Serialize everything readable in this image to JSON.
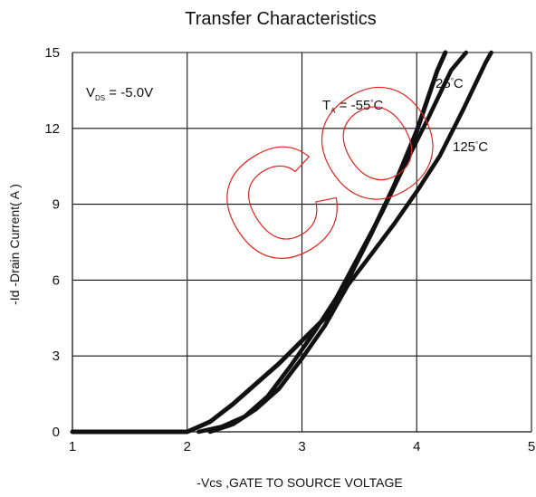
{
  "chart_data": {
    "type": "line",
    "title": "Transfer Characteristics",
    "xlabel": "-Vcs ,GATE TO SOURCE VOLTAGE",
    "ylabel": "-Id -Drain Current( A )",
    "xlim": [
      1,
      5
    ],
    "ylim": [
      0,
      15
    ],
    "grid": true,
    "x_ticks": [
      "1",
      "2",
      "3",
      "4",
      "5"
    ],
    "y_ticks": [
      "0",
      "3",
      "6",
      "9",
      "12",
      "15"
    ],
    "condition_text": "V(DS)= -5.0V",
    "series": [
      {
        "name": "TA = -55°C",
        "points": [
          [
            1.0,
            0.0
          ],
          [
            1.5,
            0.0
          ],
          [
            2.0,
            0.0
          ],
          [
            2.2,
            0.4
          ],
          [
            2.4,
            1.1
          ],
          [
            2.6,
            1.9
          ],
          [
            2.8,
            2.7
          ],
          [
            3.0,
            3.6
          ],
          [
            3.2,
            4.5
          ],
          [
            3.4,
            6.0
          ],
          [
            3.6,
            7.8
          ],
          [
            3.8,
            9.7
          ],
          [
            4.0,
            11.9
          ],
          [
            4.18,
            14.3
          ],
          [
            4.25,
            15.0
          ]
        ]
      },
      {
        "name": "25°C",
        "points": [
          [
            2.1,
            0.0
          ],
          [
            2.3,
            0.2
          ],
          [
            2.5,
            0.6
          ],
          [
            2.7,
            1.4
          ],
          [
            2.9,
            2.6
          ],
          [
            3.1,
            3.9
          ],
          [
            3.3,
            5.3
          ],
          [
            3.5,
            7.0
          ],
          [
            3.7,
            8.7
          ],
          [
            3.9,
            10.6
          ],
          [
            4.1,
            12.4
          ],
          [
            4.3,
            14.3
          ],
          [
            4.43,
            15.0
          ]
        ]
      },
      {
        "name": "125°C",
        "points": [
          [
            2.2,
            0.0
          ],
          [
            2.4,
            0.3
          ],
          [
            2.6,
            0.9
          ],
          [
            2.8,
            1.7
          ],
          [
            3.0,
            2.9
          ],
          [
            3.2,
            4.2
          ],
          [
            3.4,
            5.8
          ],
          [
            3.6,
            7.0
          ],
          [
            3.8,
            8.2
          ],
          [
            4.0,
            9.5
          ],
          [
            4.2,
            10.9
          ],
          [
            4.4,
            12.7
          ],
          [
            4.6,
            14.6
          ],
          [
            4.65,
            15.0
          ]
        ]
      }
    ]
  },
  "annotations": {
    "vds": "V(DS)= -5.0V",
    "ta_label": "T(A) = -55°C",
    "label_25": "25°C",
    "label_125": "125°C"
  },
  "watermark": {
    "text": "CO",
    "color": "#e2221d"
  }
}
